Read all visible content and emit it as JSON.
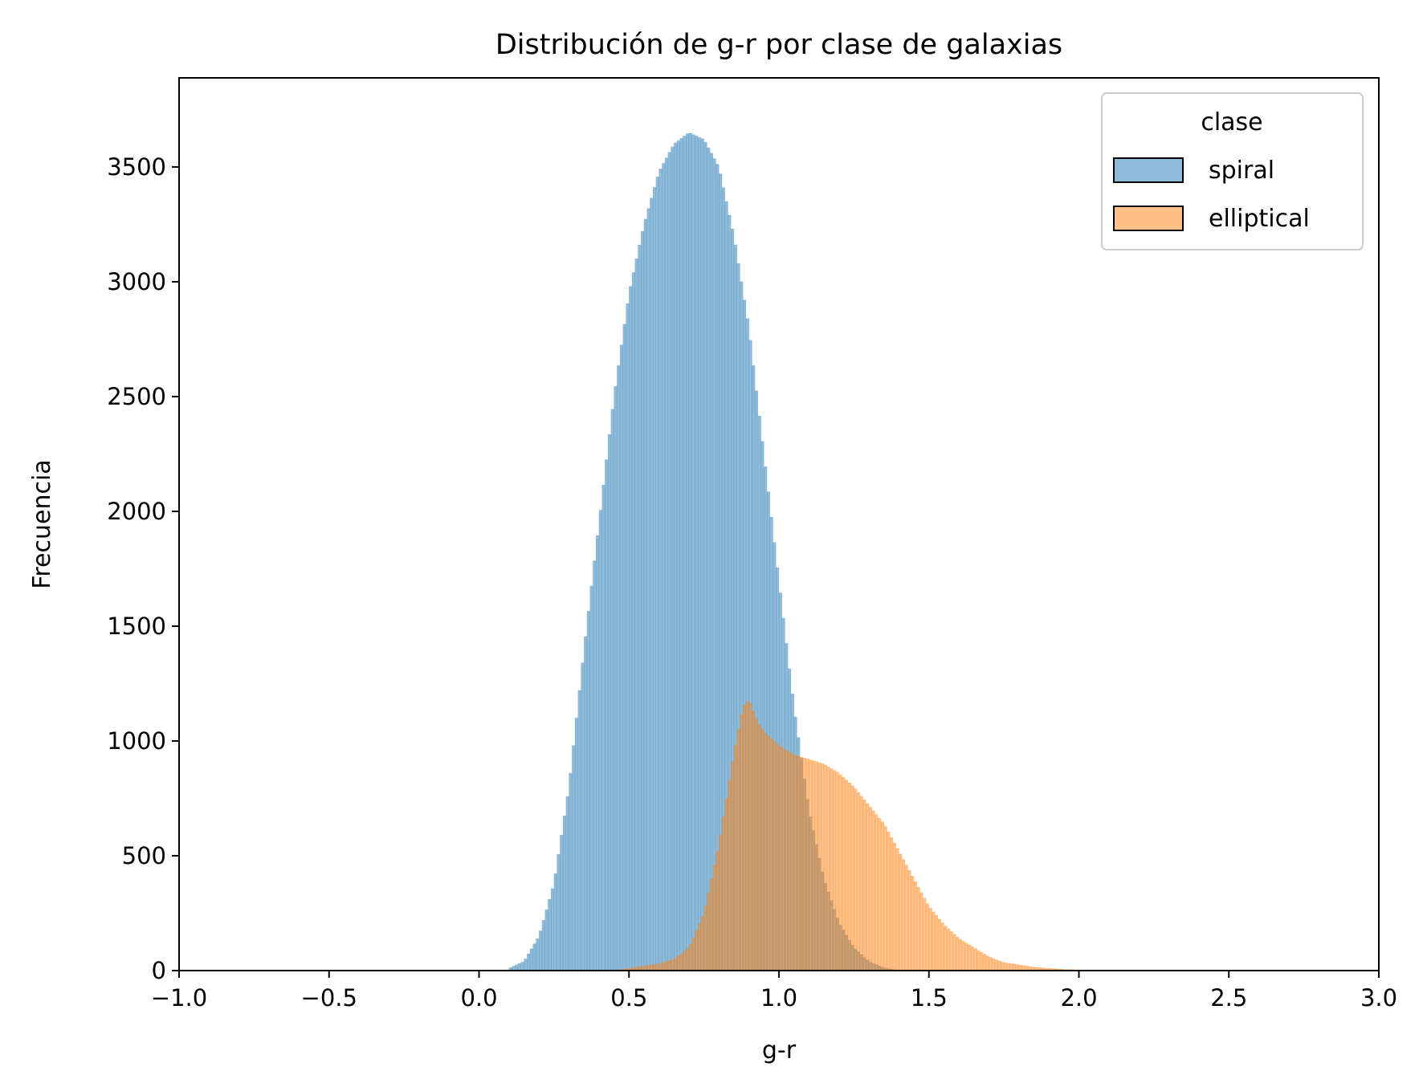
{
  "chart_data": {
    "type": "bar",
    "title": "Distribución de g-r por clase de galaxias",
    "xlabel": "g-r",
    "ylabel": "Frecuencia",
    "xlim": [
      -1.0,
      3.0
    ],
    "ylim": [
      0,
      3888
    ],
    "xticks": [
      -1.0,
      -0.5,
      0.0,
      0.5,
      1.0,
      1.5,
      2.0,
      2.5,
      3.0
    ],
    "xtick_labels": [
      "−1.0",
      "−0.5",
      "0.0",
      "0.5",
      "1.0",
      "1.5",
      "2.0",
      "2.5",
      "3.0"
    ],
    "yticks": [
      0,
      500,
      1000,
      1500,
      2000,
      2500,
      3000,
      3500
    ],
    "ytick_labels": [
      "0",
      "500",
      "1000",
      "1500",
      "2000",
      "2500",
      "3000",
      "3500"
    ],
    "legend": {
      "title": "clase",
      "placement": "upper right"
    },
    "grid": false,
    "series": [
      {
        "name": "spiral",
        "color": "#1f77b4",
        "points": [
          [
            0.1,
            10
          ],
          [
            0.15,
            40
          ],
          [
            0.2,
            150
          ],
          [
            0.25,
            380
          ],
          [
            0.3,
            800
          ],
          [
            0.35,
            1400
          ],
          [
            0.4,
            1950
          ],
          [
            0.45,
            2500
          ],
          [
            0.5,
            2950
          ],
          [
            0.55,
            3250
          ],
          [
            0.6,
            3480
          ],
          [
            0.65,
            3600
          ],
          [
            0.7,
            3650
          ],
          [
            0.75,
            3620
          ],
          [
            0.8,
            3500
          ],
          [
            0.85,
            3200
          ],
          [
            0.9,
            2800
          ],
          [
            0.95,
            2250
          ],
          [
            1.0,
            1700
          ],
          [
            1.05,
            1150
          ],
          [
            1.1,
            700
          ],
          [
            1.15,
            400
          ],
          [
            1.2,
            210
          ],
          [
            1.25,
            100
          ],
          [
            1.3,
            40
          ],
          [
            1.35,
            12
          ],
          [
            1.4,
            0
          ]
        ]
      },
      {
        "name": "elliptical",
        "color": "#ff7f0e",
        "points": [
          [
            0.45,
            0
          ],
          [
            0.5,
            10
          ],
          [
            0.6,
            30
          ],
          [
            0.65,
            50
          ],
          [
            0.7,
            100
          ],
          [
            0.75,
            250
          ],
          [
            0.8,
            550
          ],
          [
            0.85,
            950
          ],
          [
            0.88,
            1150
          ],
          [
            0.9,
            1180
          ],
          [
            0.93,
            1080
          ],
          [
            0.95,
            1040
          ],
          [
            1.0,
            980
          ],
          [
            1.05,
            940
          ],
          [
            1.1,
            920
          ],
          [
            1.15,
            900
          ],
          [
            1.2,
            860
          ],
          [
            1.25,
            800
          ],
          [
            1.3,
            720
          ],
          [
            1.35,
            640
          ],
          [
            1.4,
            520
          ],
          [
            1.45,
            400
          ],
          [
            1.5,
            280
          ],
          [
            1.55,
            200
          ],
          [
            1.6,
            140
          ],
          [
            1.65,
            100
          ],
          [
            1.7,
            60
          ],
          [
            1.75,
            35
          ],
          [
            1.8,
            25
          ],
          [
            1.85,
            15
          ],
          [
            1.9,
            10
          ],
          [
            1.95,
            5
          ],
          [
            2.0,
            3
          ],
          [
            2.05,
            0
          ]
        ]
      }
    ]
  }
}
